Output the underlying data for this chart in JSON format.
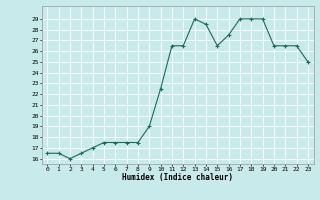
{
  "x": [
    0,
    1,
    2,
    3,
    4,
    5,
    6,
    7,
    8,
    9,
    10,
    11,
    12,
    13,
    14,
    15,
    16,
    17,
    18,
    19,
    20,
    21,
    22,
    23
  ],
  "y": [
    16.5,
    16.5,
    16.0,
    16.5,
    17.0,
    17.5,
    17.5,
    17.5,
    17.5,
    19.0,
    22.5,
    26.5,
    26.5,
    29.0,
    28.5,
    26.5,
    27.5,
    29.0,
    29.0,
    29.0,
    26.5,
    26.5,
    26.5,
    25.0
  ],
  "line_color": "#1a6b5a",
  "marker": "+",
  "bg_color": "#c8eaea",
  "grid_color": "#ffffff",
  "xlabel": "Humidex (Indice chaleur)",
  "ylim": [
    15.5,
    30.2
  ],
  "xlim": [
    -0.5,
    23.5
  ],
  "yticks": [
    16,
    17,
    18,
    19,
    20,
    21,
    22,
    23,
    24,
    25,
    26,
    27,
    28,
    29
  ],
  "xticks": [
    0,
    1,
    2,
    3,
    4,
    5,
    6,
    7,
    8,
    9,
    10,
    11,
    12,
    13,
    14,
    15,
    16,
    17,
    18,
    19,
    20,
    21,
    22,
    23
  ],
  "tick_fontsize": 4.5,
  "xlabel_fontsize": 5.5,
  "linewidth": 0.8,
  "markersize": 3.0
}
